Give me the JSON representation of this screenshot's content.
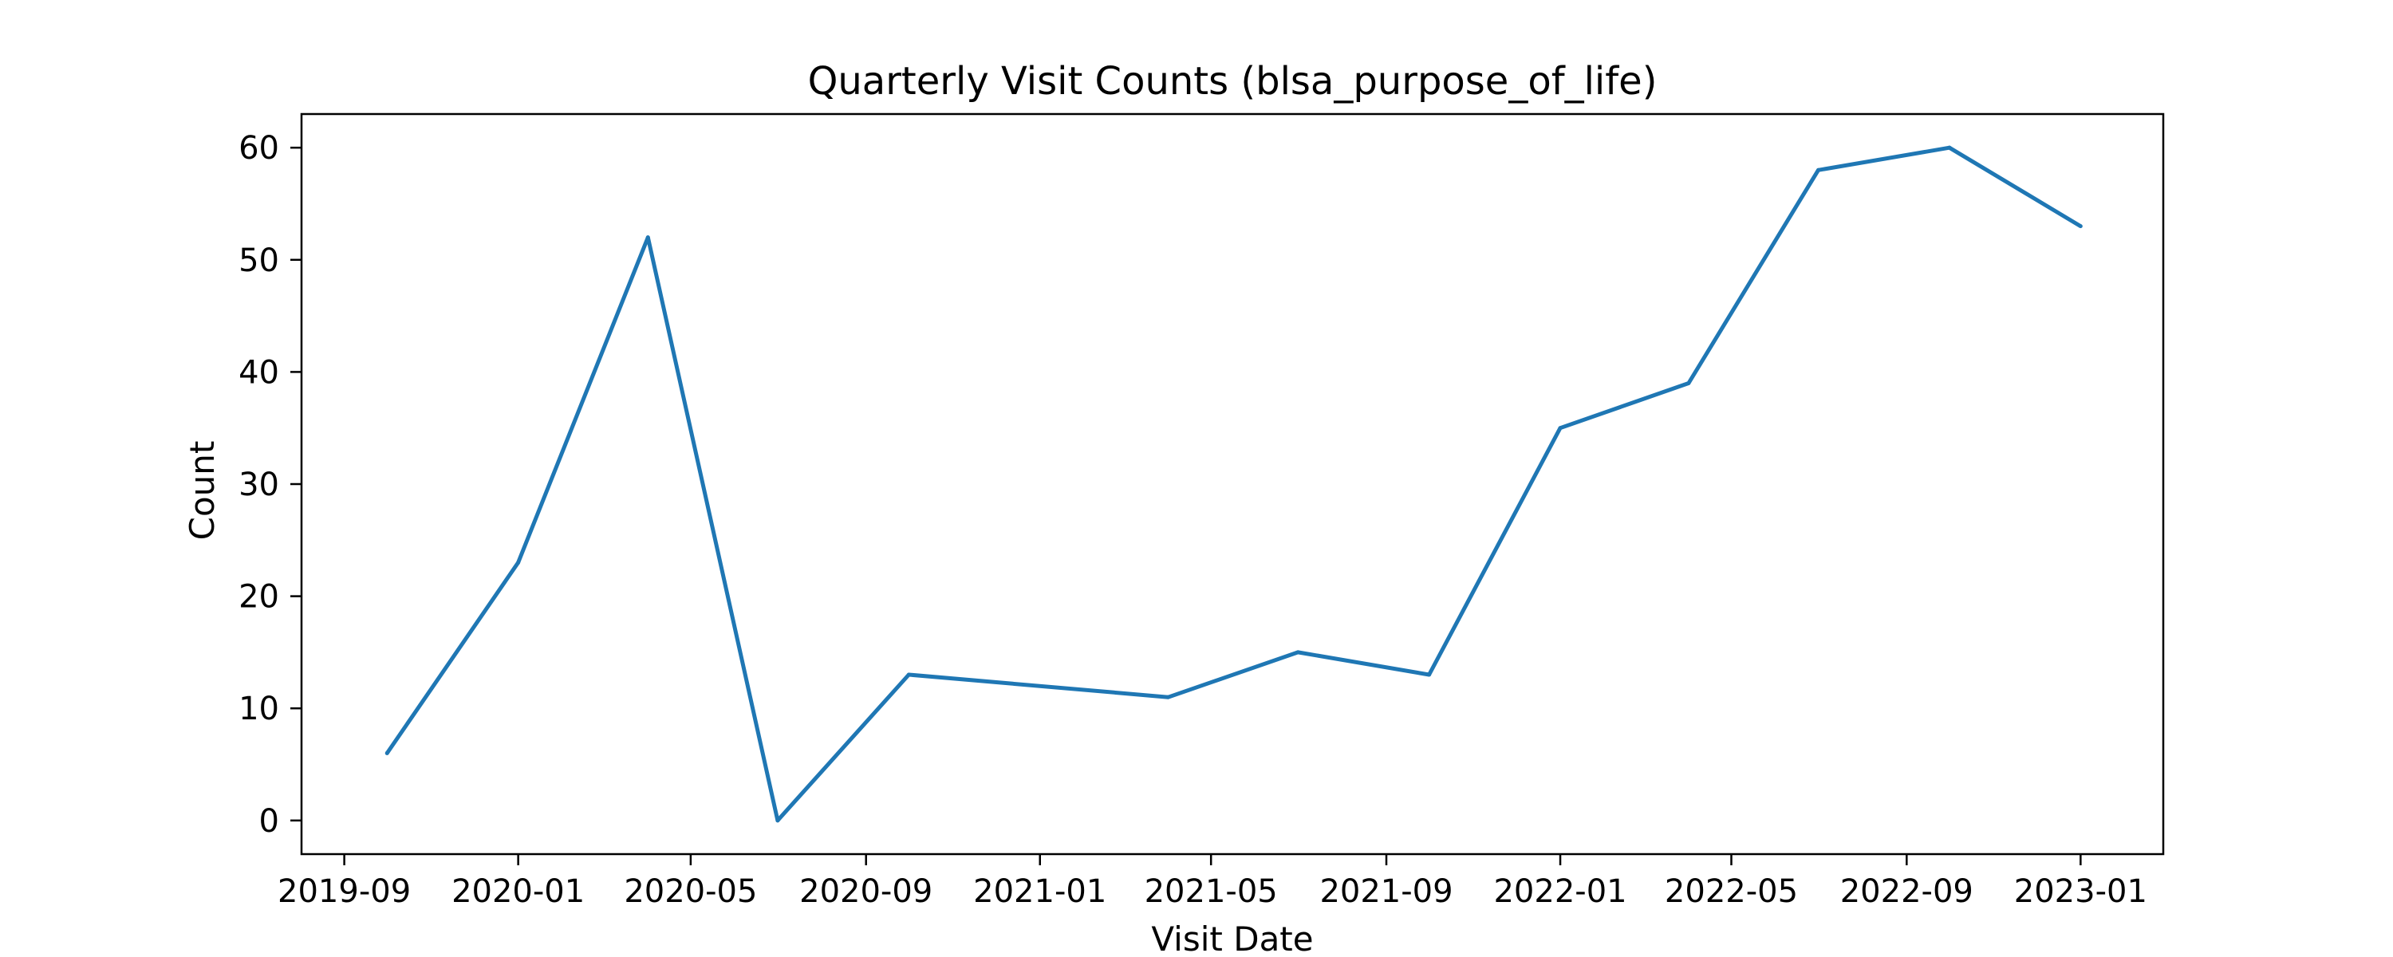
{
  "chart_data": {
    "type": "line",
    "title": "Quarterly Visit Counts (blsa_purpose_of_life)",
    "xlabel": "Visit Date",
    "ylabel": "Count",
    "x": [
      "2019-10-01",
      "2020-01-01",
      "2020-04-01",
      "2020-07-01",
      "2020-10-01",
      "2021-04-01",
      "2021-07-01",
      "2021-10-01",
      "2022-01-01",
      "2022-04-01",
      "2022-07-01",
      "2022-10-01",
      "2023-01-01"
    ],
    "series": [
      {
        "values": [
          6,
          23,
          52,
          0,
          13,
          11,
          15,
          13,
          35,
          39,
          58,
          60,
          53
        ],
        "color": "#1f77b4"
      }
    ],
    "xlim": [
      "2019-08-02",
      "2023-02-28"
    ],
    "ylim": [
      -3,
      63
    ],
    "x_ticks": [
      "2019-09-01",
      "2020-01-01",
      "2020-05-01",
      "2020-09-01",
      "2021-01-01",
      "2021-05-01",
      "2021-09-01",
      "2022-01-01",
      "2022-05-01",
      "2022-09-01",
      "2023-01-01"
    ],
    "x_tick_labels": [
      "2019-09",
      "2020-01",
      "2020-05",
      "2020-09",
      "2021-01",
      "2021-05",
      "2021-09",
      "2022-01",
      "2022-05",
      "2022-09",
      "2023-01"
    ],
    "y_ticks": [
      0,
      10,
      20,
      30,
      40,
      50,
      60
    ],
    "y_tick_labels": [
      "0",
      "10",
      "20",
      "30",
      "40",
      "50",
      "60"
    ],
    "grid": false,
    "legend": "none"
  }
}
